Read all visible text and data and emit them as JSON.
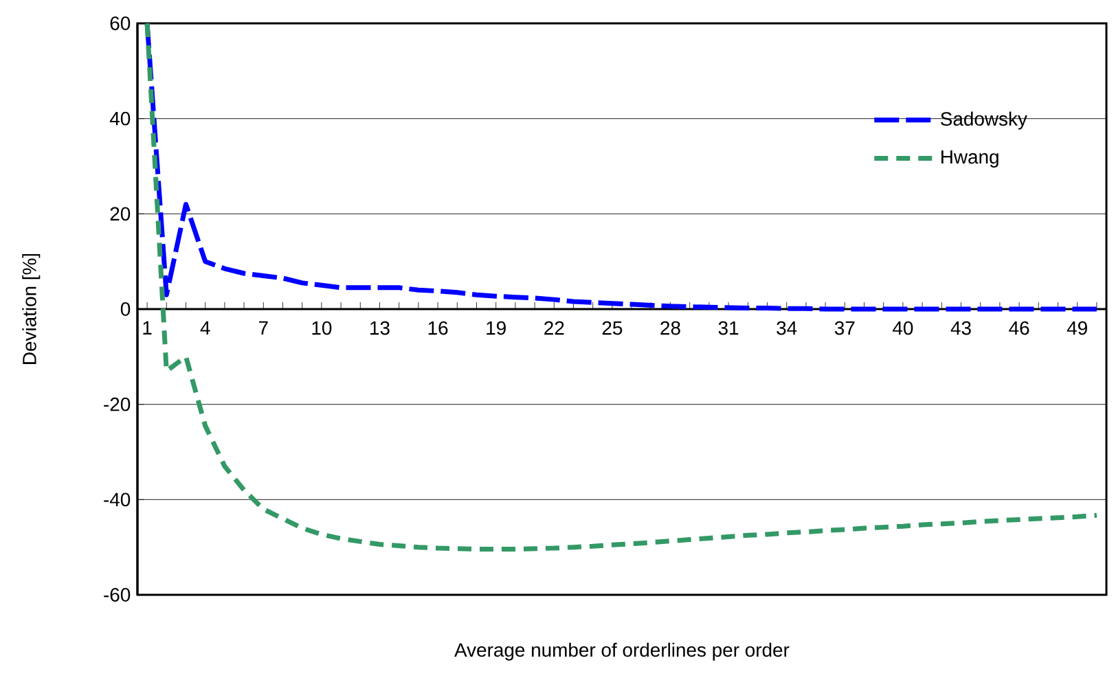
{
  "chart_data": {
    "type": "line",
    "xlabel": "Average number of orderlines per order",
    "ylabel": "Deviation [%]",
    "categories": [
      "1",
      null,
      null,
      "4",
      null,
      null,
      "7",
      null,
      null,
      "10",
      null,
      null,
      "13",
      null,
      null,
      "16",
      null,
      null,
      "19",
      null,
      null,
      "22",
      null,
      null,
      "25",
      null,
      null,
      "28",
      null,
      null,
      "31",
      null,
      null,
      "34",
      null,
      null,
      "37",
      null,
      null,
      "40",
      null,
      null,
      "43",
      null,
      null,
      "46",
      null,
      null,
      "49",
      null
    ],
    "series": [
      {
        "name": "Sadowsky",
        "color": "#0000ff",
        "line_style": "dashed",
        "values": [
          60,
          3,
          22,
          10,
          8.5,
          7.5,
          7,
          6.5,
          5.5,
          5,
          4.5,
          4.5,
          4.5,
          4.5,
          4,
          3.8,
          3.5,
          3,
          2.7,
          2.5,
          2.3,
          2,
          1.6,
          1.4,
          1.2,
          1,
          0.8,
          0.6,
          0.5,
          0.4,
          0.3,
          0.2,
          0.2,
          0.1,
          0.1,
          0,
          0,
          0,
          0,
          0,
          0,
          0,
          0,
          0,
          0,
          0,
          0,
          0,
          0,
          0
        ]
      },
      {
        "name": "Hwang",
        "color": "#339966",
        "line_style": "dotted",
        "values": [
          60,
          -13,
          -10,
          -24.5,
          -33,
          -38,
          -42,
          -44,
          -46,
          -47.3,
          -48.2,
          -48.8,
          -49.4,
          -49.7,
          -50,
          -50.2,
          -50.3,
          -50.4,
          -50.4,
          -50.4,
          -50.3,
          -50.2,
          -50,
          -49.8,
          -49.5,
          -49.3,
          -49,
          -48.7,
          -48.4,
          -48.1,
          -47.8,
          -47.5,
          -47.3,
          -47,
          -46.8,
          -46.5,
          -46.3,
          -46,
          -45.8,
          -45.6,
          -45.3,
          -45.1,
          -44.9,
          -44.6,
          -44.4,
          -44.2,
          -44,
          -43.8,
          -43.6,
          -43.3
        ]
      }
    ],
    "ylim": [
      -60,
      60
    ],
    "yticks": [
      -60,
      -40,
      -20,
      0,
      20,
      40,
      60
    ],
    "grid": "y",
    "legend": "top right"
  }
}
